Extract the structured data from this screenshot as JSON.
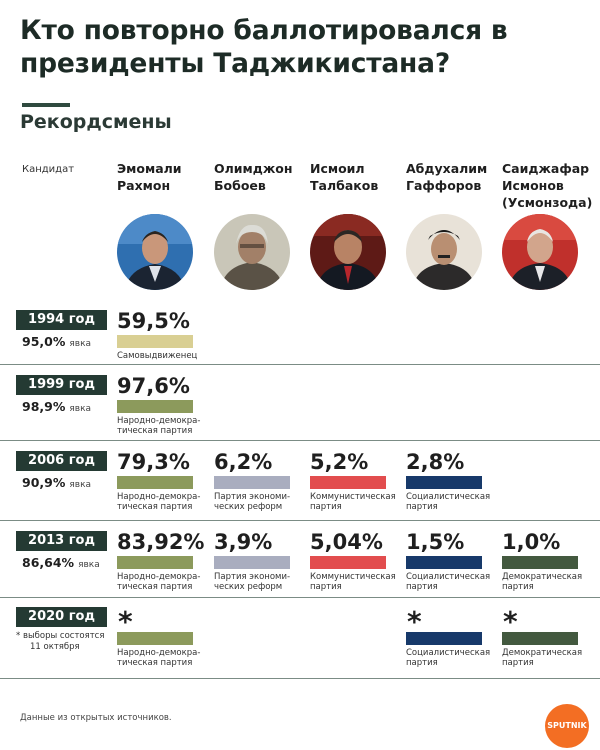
{
  "title": "Кто повторно баллотировался в президенты Таджикистана?",
  "section_title": "Рекордсмены",
  "candidate_label": "Кандидат",
  "turnout_unit": "явка",
  "source": "Данные из открытых источников.",
  "logo_text": "SPUTNIK",
  "colors": {
    "Самовыдвиженец": "#d9cf93",
    "Народно-демократическая партия": "#8c9a5c",
    "Партия экономических реформ": "#a9adbf",
    "Коммунистическая партия": "#e24d4e",
    "Социалистическая партия": "#17396a",
    "Демократическая партия": "#43593f"
  },
  "candidates": [
    {
      "name_line1": "Эмомали",
      "name_line2": "Рахмон",
      "name_line3": ""
    },
    {
      "name_line1": "Олимджон",
      "name_line2": "Бобоев",
      "name_line3": ""
    },
    {
      "name_line1": "Исмоил",
      "name_line2": "Талбаков",
      "name_line3": ""
    },
    {
      "name_line1": "Абдухалим",
      "name_line2": "Гаффоров",
      "name_line3": ""
    },
    {
      "name_line1": "Саиджафар",
      "name_line2": "Исмонов",
      "name_line3": "(Усмонзода)"
    }
  ],
  "elections": [
    {
      "year": "1994 год",
      "turnout": "95,0%",
      "results": [
        {
          "candidate": 0,
          "pct": "59,5%",
          "party_line1": "Самовыдвиженец",
          "party_line2": "",
          "party_key": "Самовыдвиженец"
        }
      ]
    },
    {
      "year": "1999 год",
      "turnout": "98,9%",
      "results": [
        {
          "candidate": 0,
          "pct": "97,6%",
          "party_line1": "Народно-демокра-",
          "party_line2": "тическая партия",
          "party_key": "Народно-демократическая партия"
        }
      ]
    },
    {
      "year": "2006 год",
      "turnout": "90,9%",
      "results": [
        {
          "candidate": 0,
          "pct": "79,3%",
          "party_line1": "Народно-демокра-",
          "party_line2": "тическая партия",
          "party_key": "Народно-демократическая партия"
        },
        {
          "candidate": 1,
          "pct": "6,2%",
          "party_line1": "Партия экономи-",
          "party_line2": "ческих реформ",
          "party_key": "Партия экономических реформ"
        },
        {
          "candidate": 2,
          "pct": "5,2%",
          "party_line1": "Коммунистическая",
          "party_line2": "партия",
          "party_key": "Коммунистическая партия"
        },
        {
          "candidate": 3,
          "pct": "2,8%",
          "party_line1": "Социалистическая",
          "party_line2": "партия",
          "party_key": "Социалистическая партия"
        }
      ]
    },
    {
      "year": "2013 год",
      "turnout": "86,64%",
      "results": [
        {
          "candidate": 0,
          "pct": "83,92%",
          "party_line1": "Народно-демокра-",
          "party_line2": "тическая партия",
          "party_key": "Народно-демократическая партия"
        },
        {
          "candidate": 1,
          "pct": "3,9%",
          "party_line1": "Партия экономи-",
          "party_line2": "ческих реформ",
          "party_key": "Партия экономических реформ"
        },
        {
          "candidate": 2,
          "pct": "5,04%",
          "party_line1": "Коммунистическая",
          "party_line2": "партия",
          "party_key": "Коммунистическая партия"
        },
        {
          "candidate": 3,
          "pct": "1,5%",
          "party_line1": "Социалистическая",
          "party_line2": "партия",
          "party_key": "Социалистическая партия"
        },
        {
          "candidate": 4,
          "pct": "1,0%",
          "party_line1": "Демократическая",
          "party_line2": "партия",
          "party_key": "Демократическая партия"
        }
      ]
    },
    {
      "year": "2020 год",
      "turnout": "",
      "note_line1": "* выборы состоятся",
      "note_line2": "11 октября",
      "results": [
        {
          "candidate": 0,
          "pct": "*",
          "party_line1": "Народно-демокра-",
          "party_line2": "тическая партия",
          "party_key": "Народно-демократическая партия"
        },
        {
          "candidate": 3,
          "pct": "*",
          "party_line1": "Социалистическая",
          "party_line2": "партия",
          "party_key": "Социалистическая партия"
        },
        {
          "candidate": 4,
          "pct": "*",
          "party_line1": "Демократическая",
          "party_line2": "партия",
          "party_key": "Демократическая партия"
        }
      ]
    }
  ],
  "chart_data": {
    "type": "table",
    "title": "Кто повторно баллотировался в президенты Таджикистана?",
    "subtitle": "Рекордсмены",
    "columns": [
      "Эмомали Рахмон",
      "Олимджон Бобоев",
      "Исмоил Талбаков",
      "Абдухалим Гаффоров",
      "Саиджафар Исмонов (Усмонзода)"
    ],
    "rows": [
      {
        "year": "1994 год",
        "turnout": 95.0,
        "values": [
          59.5,
          null,
          null,
          null,
          null
        ]
      },
      {
        "year": "1999 год",
        "turnout": 98.9,
        "values": [
          97.6,
          null,
          null,
          null,
          null
        ]
      },
      {
        "year": "2006 год",
        "turnout": 90.9,
        "values": [
          79.3,
          6.2,
          5.2,
          2.8,
          null
        ]
      },
      {
        "year": "2013 год",
        "turnout": 86.64,
        "values": [
          83.92,
          3.9,
          5.04,
          1.5,
          1.0
        ]
      },
      {
        "year": "2020 год",
        "turnout": null,
        "values": [
          "*",
          null,
          null,
          "*",
          "*"
        ]
      }
    ]
  }
}
